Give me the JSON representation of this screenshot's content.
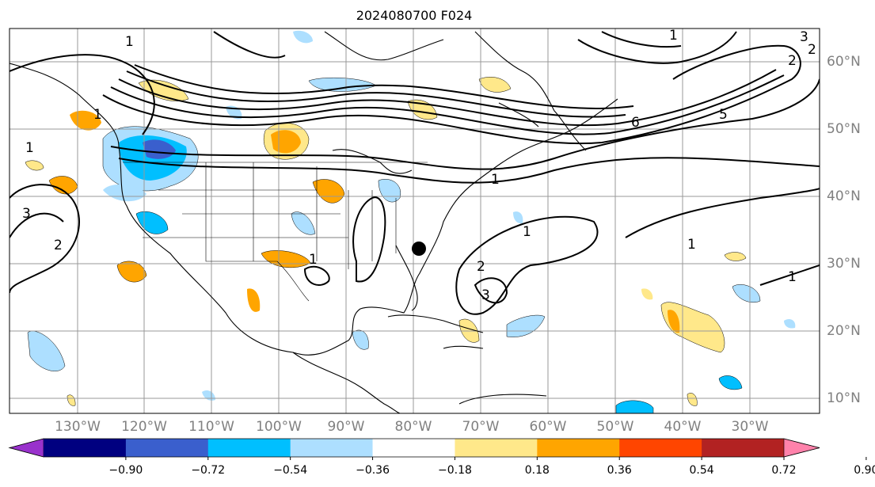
{
  "title": "2024080700 F024",
  "lon_labels": [
    "130°W",
    "120°W",
    "110°W",
    "100°W",
    "90°W",
    "80°W",
    "70°W",
    "60°W",
    "50°W",
    "40°W",
    "30°W"
  ],
  "lat_labels": [
    "60°N",
    "50°N",
    "40°N",
    "30°N",
    "20°N",
    "10°N"
  ],
  "colorbar": {
    "labels": [
      "−0.90",
      "−0.72",
      "−0.54",
      "−0.36",
      "−0.18",
      "0.18",
      "0.36",
      "0.54",
      "0.72",
      "0.90"
    ],
    "colors": [
      "#9932CC",
      "#000080",
      "#3A5FCD",
      "#00BFFF",
      "#ADDFFF",
      "#FFFFFF",
      "#FFE88A",
      "#FFA500",
      "#FF4500",
      "#B22222",
      "#FF82AB"
    ]
  },
  "contour_labels": [
    "1",
    "1",
    "1",
    "2",
    "3",
    "5",
    "6",
    "1",
    "1",
    "2",
    "3",
    "1",
    "1",
    "1",
    "2",
    "3",
    "1",
    "2"
  ],
  "marker": "storm-position-dot"
}
